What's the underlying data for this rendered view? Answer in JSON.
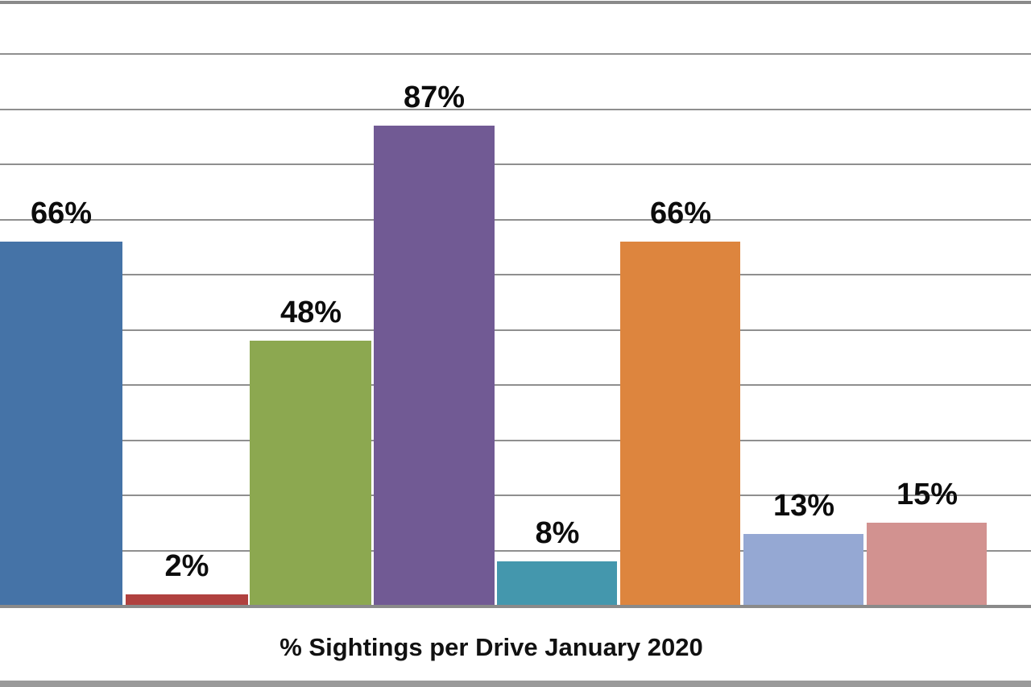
{
  "chart_data": {
    "type": "bar",
    "title": "% Sightings per Drive January 2020",
    "values": [
      66,
      2,
      48,
      87,
      8,
      66,
      13,
      15
    ],
    "data_labels": [
      "66%",
      "2%",
      "48%",
      "87%",
      "8%",
      "66%",
      "13%",
      "15%"
    ],
    "bar_colors": [
      "#4573a7",
      "#b0413f",
      "#8ca850",
      "#715a94",
      "#4497ad",
      "#dd853e",
      "#95a8d3",
      "#d29290"
    ],
    "xlabel": "",
    "ylabel": "",
    "ylim": [
      0,
      110
    ],
    "gridline_step": 10,
    "grid": "horizontal",
    "legend_position": "none",
    "axis_tick_labels_visible": false,
    "category_labels_visible": false,
    "label_position": "above-bar",
    "notes": "chart cropped at left edge; first bar flush with image edge; empty slot right of last bar"
  },
  "style_colors": {
    "gridline": "#8f8f8f",
    "chart_border": "#8a8a8a",
    "axis_line": "#8a8a8a",
    "bottom_edge": "#9a9a9a",
    "label_text": "#0c0c0c",
    "background": "#ffffff"
  }
}
